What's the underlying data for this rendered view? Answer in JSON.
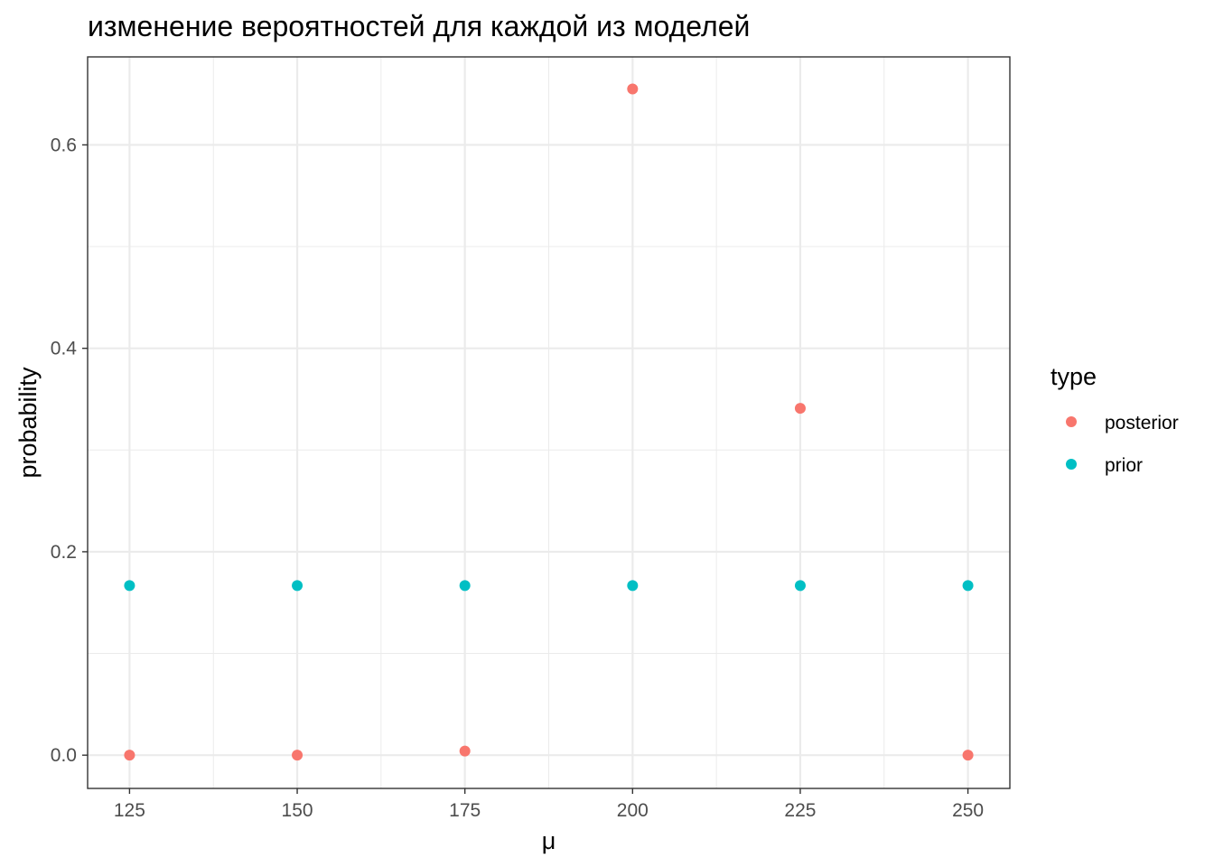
{
  "chart_data": {
    "type": "scatter",
    "title": "изменение вероятностей для каждой из моделей",
    "xlabel": "μ",
    "ylabel": "probability",
    "xlim": [
      118.75,
      256.25
    ],
    "ylim": [
      -0.0327,
      0.6865
    ],
    "x_ticks": [
      125,
      150,
      175,
      200,
      225,
      250
    ],
    "x_tick_labels": [
      "125",
      "150",
      "175",
      "200",
      "225",
      "250"
    ],
    "y_ticks": [
      0.0,
      0.2,
      0.4,
      0.6
    ],
    "y_tick_labels": [
      "0.0",
      "0.2",
      "0.4",
      "0.6"
    ],
    "grid": true,
    "legend": {
      "title": "type",
      "placement": "right",
      "entries": [
        {
          "label": "posterior",
          "color": "#F8766D"
        },
        {
          "label": "prior",
          "color": "#00BFC4"
        }
      ]
    },
    "series": [
      {
        "name": "posterior",
        "color": "#F8766D",
        "points": [
          {
            "x": 125,
            "y": 0.0
          },
          {
            "x": 150,
            "y": 0.0
          },
          {
            "x": 175,
            "y": 0.004
          },
          {
            "x": 200,
            "y": 0.655
          },
          {
            "x": 225,
            "y": 0.341
          },
          {
            "x": 250,
            "y": 0.0
          }
        ]
      },
      {
        "name": "prior",
        "color": "#00BFC4",
        "points": [
          {
            "x": 125,
            "y": 0.1667
          },
          {
            "x": 150,
            "y": 0.1667
          },
          {
            "x": 175,
            "y": 0.1667
          },
          {
            "x": 200,
            "y": 0.1667
          },
          {
            "x": 225,
            "y": 0.1667
          },
          {
            "x": 250,
            "y": 0.1667
          }
        ]
      }
    ]
  }
}
